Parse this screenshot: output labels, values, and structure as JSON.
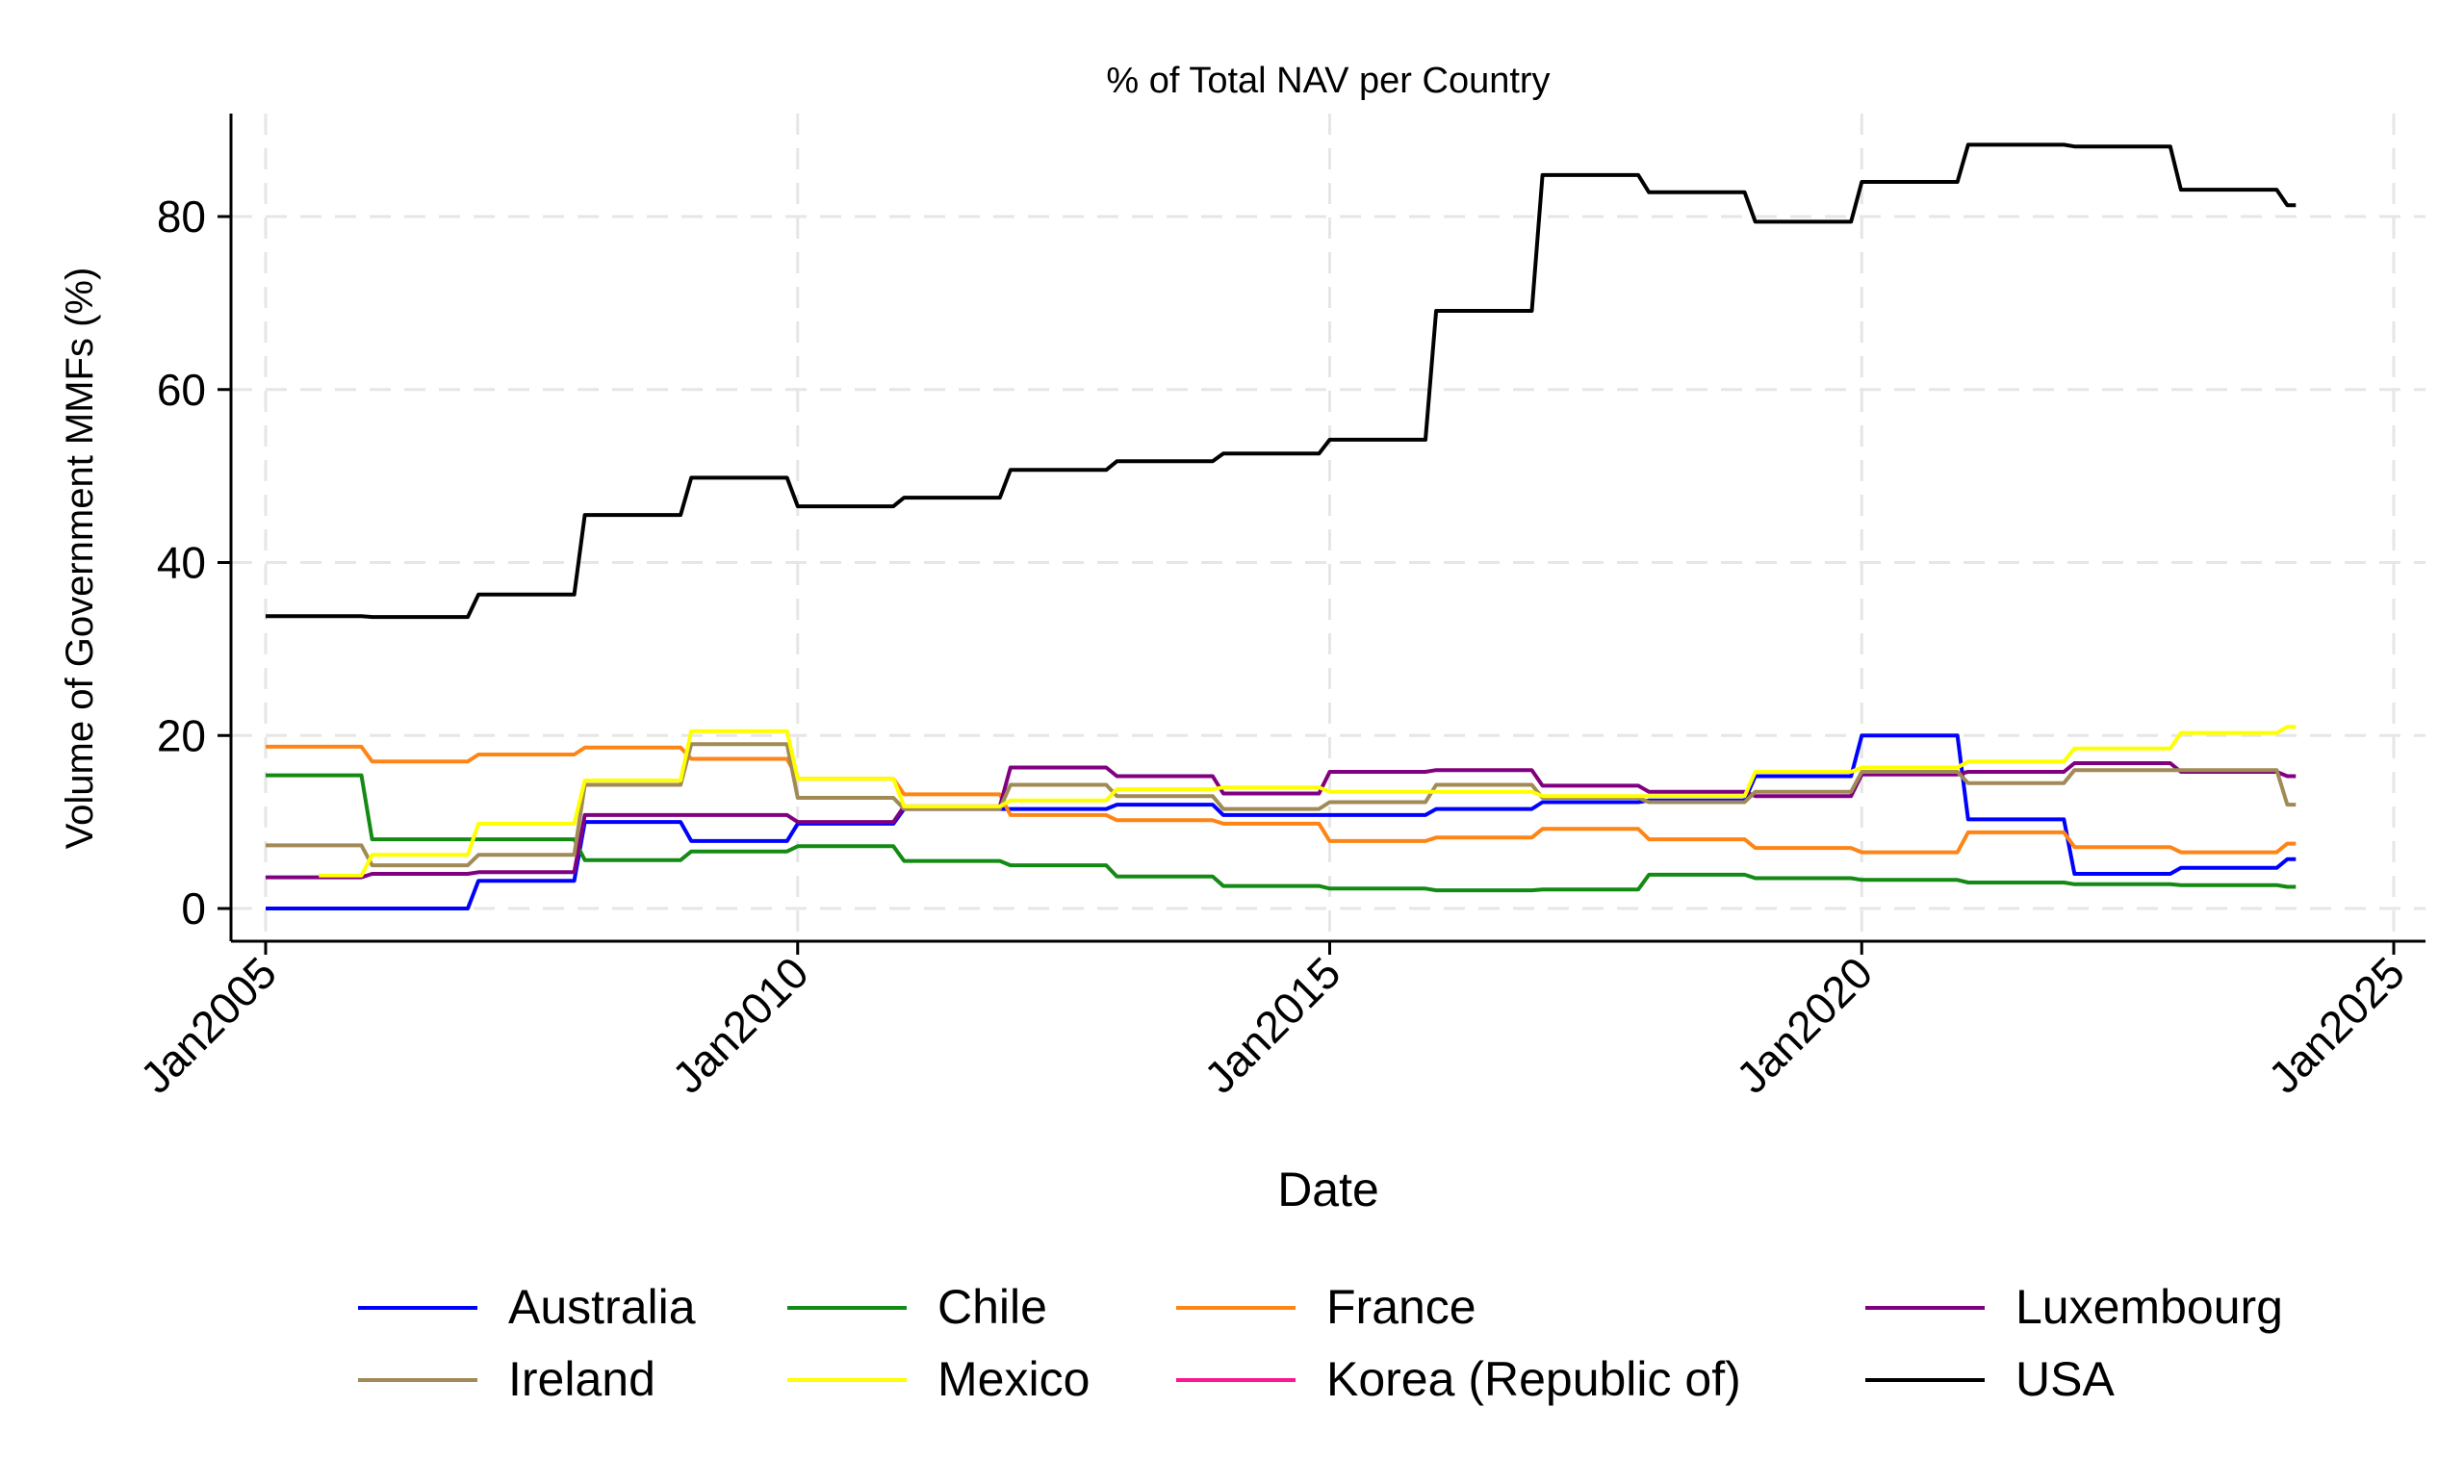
{
  "chart_data": {
    "type": "line",
    "title": "% of Total NAV per Country",
    "xlabel": "Date",
    "ylabel": "Volume of Government MMFs (%)",
    "xlim": [
      2005,
      2025
    ],
    "ylim": [
      -2.5,
      92
    ],
    "x_ticks": [
      {
        "value": 2005,
        "label": "Jan2005"
      },
      {
        "value": 2010,
        "label": "Jan2010"
      },
      {
        "value": 2015,
        "label": "Jan2015"
      },
      {
        "value": 2020,
        "label": "Jan2020"
      },
      {
        "value": 2025,
        "label": "Jan2025"
      }
    ],
    "y_ticks": [
      {
        "value": 0,
        "label": "0"
      },
      {
        "value": 20,
        "label": "20"
      },
      {
        "value": 40,
        "label": "40"
      },
      {
        "value": 60,
        "label": "60"
      },
      {
        "value": 80,
        "label": "80"
      }
    ],
    "grid": true,
    "legend_position": "bottom",
    "series": [
      {
        "name": "Australia",
        "color": "#0000ff",
        "points": [
          [
            2005,
            0
          ],
          [
            2006,
            0
          ],
          [
            2006.9,
            0
          ],
          [
            2007,
            3.2
          ],
          [
            2007.9,
            3.2
          ],
          [
            2008,
            10
          ],
          [
            2008.9,
            10
          ],
          [
            2009,
            7.8
          ],
          [
            2009.9,
            7.8
          ],
          [
            2010,
            9.8
          ],
          [
            2010.9,
            9.8
          ],
          [
            2011,
            11.5
          ],
          [
            2011.9,
            11.5
          ],
          [
            2012,
            11.5
          ],
          [
            2012.9,
            11.5
          ],
          [
            2013,
            12
          ],
          [
            2013.9,
            12
          ],
          [
            2014,
            10.8
          ],
          [
            2014.9,
            10.8
          ],
          [
            2015,
            10.8
          ],
          [
            2015.9,
            10.8
          ],
          [
            2016,
            11.5
          ],
          [
            2016.9,
            11.5
          ],
          [
            2017,
            12.3
          ],
          [
            2017.9,
            12.3
          ],
          [
            2018,
            12.5
          ],
          [
            2018.9,
            12.5
          ],
          [
            2019,
            15.3
          ],
          [
            2019.9,
            15.3
          ],
          [
            2020,
            20
          ],
          [
            2020.9,
            20
          ],
          [
            2021,
            10.3
          ],
          [
            2021.9,
            10.3
          ],
          [
            2022,
            4
          ],
          [
            2022.9,
            4
          ],
          [
            2023,
            4.7
          ],
          [
            2023.9,
            4.7
          ],
          [
            2024,
            5.7
          ],
          [
            2024.08,
            5.7
          ]
        ]
      },
      {
        "name": "Chile",
        "color": "#138a13",
        "points": [
          [
            2005,
            15.4
          ],
          [
            2005.9,
            15.4
          ],
          [
            2006,
            8
          ],
          [
            2006.9,
            8
          ],
          [
            2007,
            8
          ],
          [
            2007.9,
            8
          ],
          [
            2008,
            5.6
          ],
          [
            2008.9,
            5.6
          ],
          [
            2009,
            6.6
          ],
          [
            2009.9,
            6.6
          ],
          [
            2010,
            7.2
          ],
          [
            2010.9,
            7.2
          ],
          [
            2011,
            5.5
          ],
          [
            2011.9,
            5.5
          ],
          [
            2012,
            5
          ],
          [
            2012.9,
            5
          ],
          [
            2013,
            3.7
          ],
          [
            2013.9,
            3.7
          ],
          [
            2014,
            2.6
          ],
          [
            2014.9,
            2.6
          ],
          [
            2015,
            2.3
          ],
          [
            2015.9,
            2.3
          ],
          [
            2016,
            2.1
          ],
          [
            2016.9,
            2.1
          ],
          [
            2017,
            2.2
          ],
          [
            2017.9,
            2.2
          ],
          [
            2018,
            3.9
          ],
          [
            2018.9,
            3.9
          ],
          [
            2019,
            3.5
          ],
          [
            2019.9,
            3.5
          ],
          [
            2020,
            3.3
          ],
          [
            2020.9,
            3.3
          ],
          [
            2021,
            3
          ],
          [
            2021.9,
            3
          ],
          [
            2022,
            2.8
          ],
          [
            2022.9,
            2.8
          ],
          [
            2023,
            2.7
          ],
          [
            2023.9,
            2.7
          ],
          [
            2024,
            2.5
          ],
          [
            2024.08,
            2.5
          ]
        ]
      },
      {
        "name": "France",
        "color": "#ff8416",
        "points": [
          [
            2005,
            18.7
          ],
          [
            2005.9,
            18.7
          ],
          [
            2006,
            17
          ],
          [
            2006.9,
            17
          ],
          [
            2007,
            17.8
          ],
          [
            2007.9,
            17.8
          ],
          [
            2008,
            18.6
          ],
          [
            2008.9,
            18.6
          ],
          [
            2009,
            17.3
          ],
          [
            2009.9,
            17.3
          ],
          [
            2010,
            15
          ],
          [
            2010.9,
            15
          ],
          [
            2011,
            13.2
          ],
          [
            2011.9,
            13.2
          ],
          [
            2012,
            10.8
          ],
          [
            2012.9,
            10.8
          ],
          [
            2013,
            10.2
          ],
          [
            2013.9,
            10.2
          ],
          [
            2014,
            9.8
          ],
          [
            2014.9,
            9.8
          ],
          [
            2015,
            7.8
          ],
          [
            2015.9,
            7.8
          ],
          [
            2016,
            8.2
          ],
          [
            2016.9,
            8.2
          ],
          [
            2017,
            9.2
          ],
          [
            2017.9,
            9.2
          ],
          [
            2018,
            8
          ],
          [
            2018.9,
            8
          ],
          [
            2019,
            7
          ],
          [
            2019.9,
            7
          ],
          [
            2020,
            6.5
          ],
          [
            2020.9,
            6.5
          ],
          [
            2021,
            8.8
          ],
          [
            2021.9,
            8.8
          ],
          [
            2022,
            7.1
          ],
          [
            2022.9,
            7.1
          ],
          [
            2023,
            6.5
          ],
          [
            2023.9,
            6.5
          ],
          [
            2024,
            7.5
          ],
          [
            2024.08,
            7.5
          ]
        ]
      },
      {
        "name": "Luxembourg",
        "color": "#800080",
        "points": [
          [
            2005,
            3.6
          ],
          [
            2005.9,
            3.6
          ],
          [
            2006,
            4
          ],
          [
            2006.9,
            4
          ],
          [
            2007,
            4.2
          ],
          [
            2007.9,
            4.2
          ],
          [
            2008,
            10.8
          ],
          [
            2008.9,
            10.8
          ],
          [
            2009,
            10.8
          ],
          [
            2009.9,
            10.8
          ],
          [
            2010,
            10
          ],
          [
            2010.9,
            10
          ],
          [
            2011,
            11.8
          ],
          [
            2011.9,
            11.8
          ],
          [
            2012,
            16.3
          ],
          [
            2012.9,
            16.3
          ],
          [
            2013,
            15.3
          ],
          [
            2013.9,
            15.3
          ],
          [
            2014,
            13.3
          ],
          [
            2014.9,
            13.3
          ],
          [
            2015,
            15.8
          ],
          [
            2015.9,
            15.8
          ],
          [
            2016,
            16
          ],
          [
            2016.9,
            16
          ],
          [
            2017,
            14.2
          ],
          [
            2017.9,
            14.2
          ],
          [
            2018,
            13.5
          ],
          [
            2018.9,
            13.5
          ],
          [
            2019,
            13
          ],
          [
            2019.9,
            13
          ],
          [
            2020,
            15.5
          ],
          [
            2020.9,
            15.5
          ],
          [
            2021,
            15.8
          ],
          [
            2021.9,
            15.8
          ],
          [
            2022,
            16.8
          ],
          [
            2022.9,
            16.8
          ],
          [
            2023,
            15.8
          ],
          [
            2023.9,
            15.8
          ],
          [
            2024,
            15.3
          ],
          [
            2024.08,
            15.3
          ]
        ]
      },
      {
        "name": "Ireland",
        "color": "#a08a55",
        "points": [
          [
            2005,
            7.3
          ],
          [
            2005.9,
            7.3
          ],
          [
            2006,
            5
          ],
          [
            2006.9,
            5
          ],
          [
            2007,
            6.2
          ],
          [
            2007.9,
            6.2
          ],
          [
            2008,
            14.3
          ],
          [
            2008.9,
            14.3
          ],
          [
            2009,
            19
          ],
          [
            2009.9,
            19
          ],
          [
            2010,
            12.8
          ],
          [
            2010.9,
            12.8
          ],
          [
            2011,
            11.5
          ],
          [
            2011.9,
            11.5
          ],
          [
            2012,
            14.3
          ],
          [
            2012.9,
            14.3
          ],
          [
            2013,
            13
          ],
          [
            2013.9,
            13
          ],
          [
            2014,
            11.5
          ],
          [
            2014.9,
            11.5
          ],
          [
            2015,
            12.3
          ],
          [
            2015.9,
            12.3
          ],
          [
            2016,
            14.3
          ],
          [
            2016.9,
            14.3
          ],
          [
            2017,
            12.8
          ],
          [
            2017.9,
            12.8
          ],
          [
            2018,
            12.3
          ],
          [
            2018.9,
            12.3
          ],
          [
            2019,
            13.5
          ],
          [
            2019.9,
            13.5
          ],
          [
            2020,
            15.8
          ],
          [
            2020.9,
            15.8
          ],
          [
            2021,
            14.5
          ],
          [
            2021.9,
            14.5
          ],
          [
            2022,
            16
          ],
          [
            2022.9,
            16
          ],
          [
            2023,
            16
          ],
          [
            2023.9,
            16
          ],
          [
            2024,
            12
          ],
          [
            2024.08,
            12
          ]
        ]
      },
      {
        "name": "Mexico",
        "color": "#ffff00",
        "points": [
          [
            2005.5,
            3.8
          ],
          [
            2005.9,
            3.8
          ],
          [
            2006,
            6.2
          ],
          [
            2006.9,
            6.2
          ],
          [
            2007,
            9.8
          ],
          [
            2007.9,
            9.8
          ],
          [
            2008,
            14.8
          ],
          [
            2008.9,
            14.8
          ],
          [
            2009,
            20.5
          ],
          [
            2009.9,
            20.5
          ],
          [
            2010,
            15
          ],
          [
            2010.9,
            15
          ],
          [
            2011,
            11.8
          ],
          [
            2011.9,
            11.8
          ],
          [
            2012,
            12.5
          ],
          [
            2012.9,
            12.5
          ],
          [
            2013,
            13.8
          ],
          [
            2013.9,
            13.8
          ],
          [
            2014,
            14
          ],
          [
            2014.9,
            14
          ],
          [
            2015,
            13.5
          ],
          [
            2015.9,
            13.5
          ],
          [
            2016,
            13.5
          ],
          [
            2016.9,
            13.5
          ],
          [
            2017,
            13
          ],
          [
            2017.9,
            13
          ],
          [
            2018,
            13
          ],
          [
            2018.9,
            13
          ],
          [
            2019,
            15.8
          ],
          [
            2019.9,
            15.8
          ],
          [
            2020,
            16.3
          ],
          [
            2020.9,
            16.3
          ],
          [
            2021,
            17
          ],
          [
            2021.9,
            17
          ],
          [
            2022,
            18.5
          ],
          [
            2022.9,
            18.5
          ],
          [
            2023,
            20.3
          ],
          [
            2023.9,
            20.3
          ],
          [
            2024,
            21
          ],
          [
            2024.08,
            21
          ]
        ]
      },
      {
        "name": "Korea (Republic of)",
        "color": "#ff1493",
        "points": []
      },
      {
        "name": "USA",
        "color": "#000000",
        "points": [
          [
            2005,
            33.8
          ],
          [
            2005.9,
            33.8
          ],
          [
            2006,
            33.7
          ],
          [
            2006.9,
            33.7
          ],
          [
            2007,
            36.3
          ],
          [
            2007.9,
            36.3
          ],
          [
            2008,
            45.5
          ],
          [
            2008.9,
            45.5
          ],
          [
            2009,
            49.8
          ],
          [
            2009.9,
            49.8
          ],
          [
            2010,
            46.5
          ],
          [
            2010.9,
            46.5
          ],
          [
            2011,
            47.5
          ],
          [
            2011.9,
            47.5
          ],
          [
            2012,
            50.7
          ],
          [
            2012.9,
            50.7
          ],
          [
            2013,
            51.7
          ],
          [
            2013.9,
            51.7
          ],
          [
            2014,
            52.6
          ],
          [
            2014.9,
            52.6
          ],
          [
            2015,
            54.2
          ],
          [
            2015.9,
            54.2
          ],
          [
            2016,
            69.1
          ],
          [
            2016.9,
            69.1
          ],
          [
            2017,
            84.8
          ],
          [
            2017.9,
            84.8
          ],
          [
            2018,
            82.8
          ],
          [
            2018.9,
            82.8
          ],
          [
            2019,
            79.4
          ],
          [
            2019.9,
            79.4
          ],
          [
            2020,
            84
          ],
          [
            2020.9,
            84
          ],
          [
            2021,
            88.3
          ],
          [
            2021.9,
            88.3
          ],
          [
            2022,
            88.1
          ],
          [
            2022.9,
            88.1
          ],
          [
            2023,
            83.1
          ],
          [
            2023.9,
            83.1
          ],
          [
            2024,
            81.3
          ],
          [
            2024.08,
            81.3
          ]
        ]
      }
    ],
    "legend_order": [
      "Australia",
      "Chile",
      "France",
      "Luxembourg",
      "Ireland",
      "Mexico",
      "Korea (Republic of)",
      "USA"
    ]
  }
}
